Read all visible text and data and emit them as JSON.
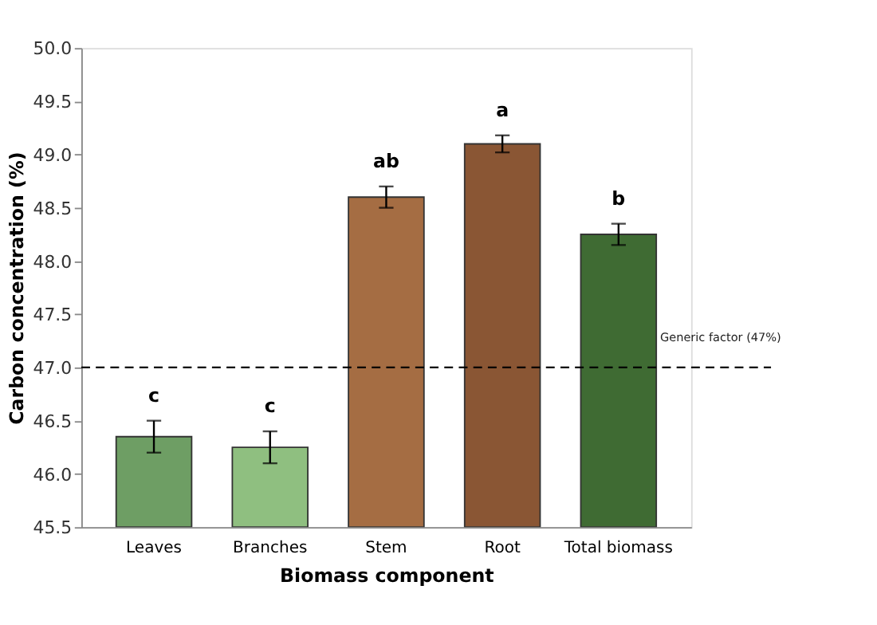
{
  "chart_data": {
    "type": "bar",
    "xlabel": "Biomass component",
    "ylabel": "Carbon concentration (%)",
    "categories": [
      "Leaves",
      "Branches",
      "Stem",
      "Root",
      "Total biomass"
    ],
    "values": [
      46.35,
      46.25,
      48.6,
      49.1,
      48.25
    ],
    "errors": [
      0.15,
      0.15,
      0.1,
      0.08,
      0.1
    ],
    "colors": [
      "#6e9e64",
      "#8fbf80",
      "#a56d43",
      "#8a5634",
      "#3f6b33"
    ],
    "ylim": [
      45.5,
      50.0
    ],
    "yticks": [
      {
        "value": 45.5,
        "label": "45.5"
      },
      {
        "value": 46,
        "label": "46.0"
      },
      {
        "value": 46.5,
        "label": "46.5"
      },
      {
        "value": 47,
        "label": "47.0"
      },
      {
        "value": 47.5,
        "label": "47.5"
      },
      {
        "value": 48,
        "label": "48.0"
      },
      {
        "value": 48.5,
        "label": "48.5"
      },
      {
        "value": 49,
        "label": "49.0"
      },
      {
        "value": 49.5,
        "label": "49.5"
      },
      {
        "value": 50,
        "label": "50.0"
      }
    ],
    "grid": false,
    "ref_lines": [
      {
        "axis": "y",
        "value": 47,
        "label": "Generic factor (47%)",
        "color": "#000000",
        "line_style": "dashed"
      }
    ],
    "annotations": [
      "c",
      "c",
      "ab",
      "a",
      "b"
    ]
  }
}
